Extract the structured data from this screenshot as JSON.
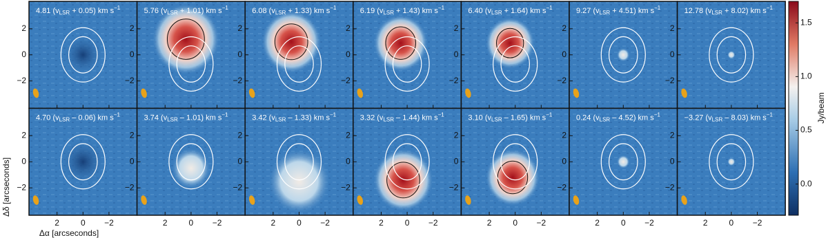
{
  "chart_data": {
    "type": "channel-map",
    "xlabel": "Δα  [arcseconds]",
    "ylabel": "Δδ  [arcseconds]",
    "xlim": [
      4.16,
      -4.16
    ],
    "ylim": [
      -4.1,
      4.1
    ],
    "xticks": [
      {
        "value": 2,
        "label": "2"
      },
      {
        "value": 0,
        "label": "0"
      },
      {
        "value": -2,
        "label": "−2"
      }
    ],
    "yticks": [
      {
        "value": 2,
        "label": "2"
      },
      {
        "value": 0,
        "label": "0"
      },
      {
        "value": -2,
        "label": "−2"
      }
    ],
    "label_sub": "LSR",
    "label_sup": "−1",
    "panels": [
      {
        "pre": "4.81 (v",
        "post": " + 0.05) km s"
      },
      {
        "pre": "5.76 (v",
        "post": " + 1.01) km s"
      },
      {
        "pre": "6.08 (v",
        "post": " + 1.33) km s"
      },
      {
        "pre": "6.19 (v",
        "post": " + 1.43) km s"
      },
      {
        "pre": "6.40 (v",
        "post": " + 1.64) km s"
      },
      {
        "pre": "9.27 (v",
        "post": " + 4.51) km s"
      },
      {
        "pre": "12.78 (v",
        "post": " + 8.02) km s"
      },
      {
        "pre": "4.70 (v",
        "post": " – 0.06) km s"
      },
      {
        "pre": "3.74 (v",
        "post": " – 1.01) km s"
      },
      {
        "pre": "3.42 (v",
        "post": " – 1.33) km s"
      },
      {
        "pre": "3.32 (v",
        "post": " – 1.44) km s"
      },
      {
        "pre": "3.10 (v",
        "post": " – 1.65) km s"
      },
      {
        "pre": "0.24 (v",
        "post": " – 4.52) km s"
      },
      {
        "pre": "−3.27 (v",
        "post": " – 8.03) km s"
      }
    ],
    "colorbar": {
      "label": "Jy/beam",
      "lim": [
        -0.29,
        1.7
      ],
      "ticks": [
        {
          "value": 0,
          "label": "0.0"
        },
        {
          "value": 0.5,
          "label": "0.5"
        },
        {
          "value": 1,
          "label": "1.0"
        },
        {
          "value": 1.5,
          "label": "1.5"
        }
      ]
    }
  }
}
